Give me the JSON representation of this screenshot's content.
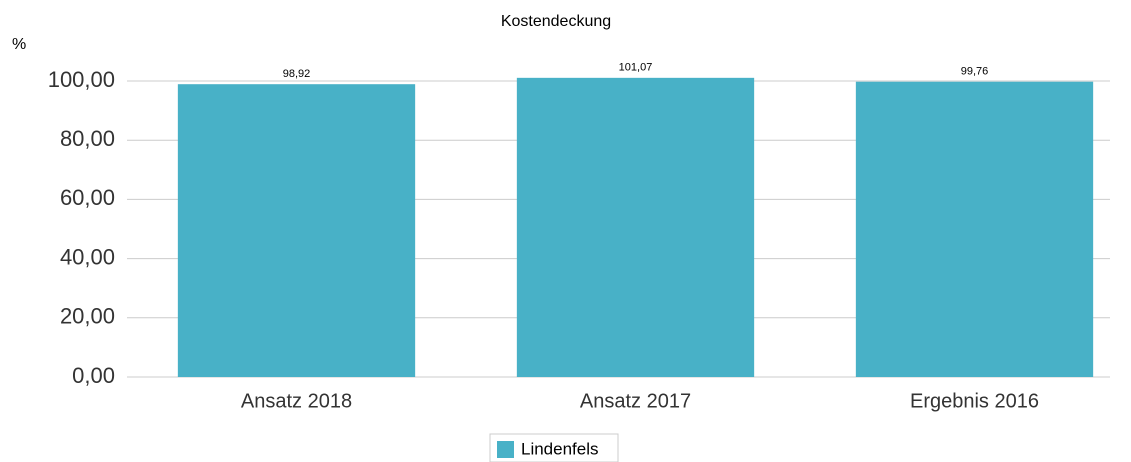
{
  "chart_data": {
    "type": "bar",
    "title": "Kostendeckung",
    "y_label": "%",
    "categories": [
      "Ansatz 2018",
      "Ansatz 2017",
      "Ergebnis 2016"
    ],
    "series": [
      {
        "name": "Lindenfels",
        "color": "#48b1c7",
        "values": [
          98.92,
          101.07,
          99.76
        ],
        "value_labels": [
          "98,92",
          "101,07",
          "99,76"
        ]
      }
    ],
    "ylim": [
      0,
      100
    ],
    "yticks": [
      {
        "value": 0,
        "label": "0,00"
      },
      {
        "value": 20,
        "label": "20,00"
      },
      {
        "value": 40,
        "label": "40,00"
      },
      {
        "value": 60,
        "label": "60,00"
      },
      {
        "value": 80,
        "label": "80,00"
      },
      {
        "value": 100,
        "label": "100,00"
      }
    ],
    "grid": true,
    "legend": "bottom"
  }
}
